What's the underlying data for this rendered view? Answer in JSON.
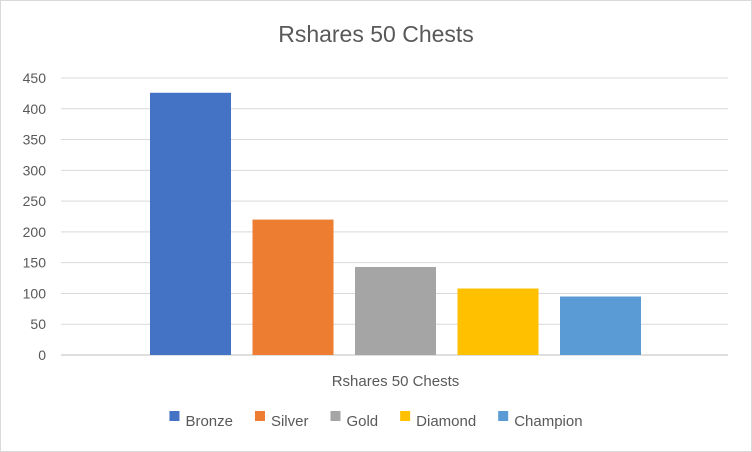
{
  "chart_data": {
    "type": "bar",
    "title": "Rshares 50 Chests",
    "categories": [
      "Rshares 50 Chests"
    ],
    "xlabel": "",
    "ylabel": "",
    "ylim": [
      0,
      450
    ],
    "yticks": [
      0,
      50,
      100,
      150,
      200,
      250,
      300,
      350,
      400,
      450
    ],
    "grid": true,
    "legend_position": "bottom",
    "series": [
      {
        "name": "Bronze",
        "values": [
          426
        ],
        "color": "#4472C4"
      },
      {
        "name": "Silver",
        "values": [
          220
        ],
        "color": "#ED7D31"
      },
      {
        "name": "Gold",
        "values": [
          143
        ],
        "color": "#A5A5A5"
      },
      {
        "name": "Diamond",
        "values": [
          108
        ],
        "color": "#FFC000"
      },
      {
        "name": "Champion",
        "values": [
          95
        ],
        "color": "#5B9BD5"
      }
    ]
  }
}
